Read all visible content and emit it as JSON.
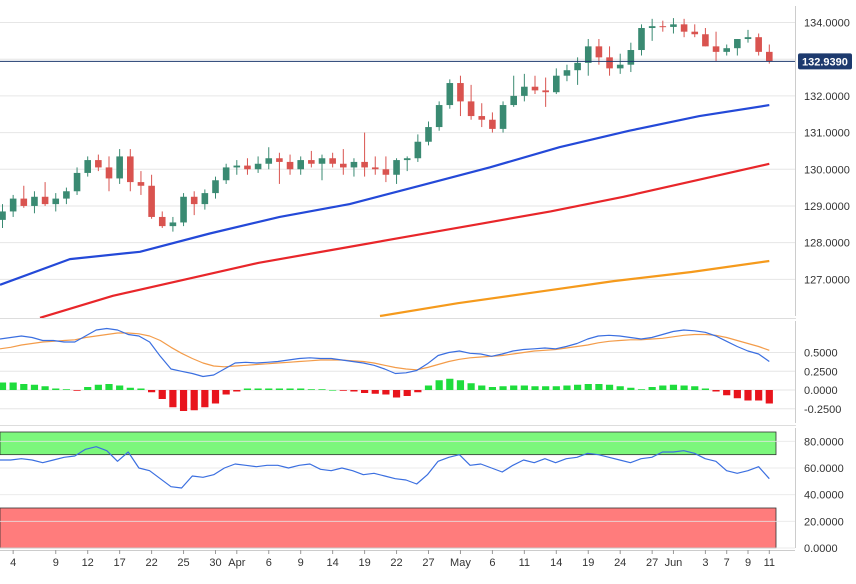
{
  "colors": {
    "up": "#3a8a72",
    "down": "#d9534f",
    "ma_fast": "#2449d8",
    "ma_mid": "#e8262a",
    "ma_slow": "#f59a1c",
    "osc_fast": "#3b6fe0",
    "osc_slow": "#f39c4a",
    "hist_pos": "#1fdc3c",
    "hist_neg": "#e8141c",
    "overbought": "#7cf77c",
    "oversold": "#ff7c7c",
    "last_price_bg": "#1d3a6e"
  },
  "chart_data": [
    {
      "type": "candlestick",
      "name": "price",
      "ylim": [
        126.0,
        134.45
      ],
      "y_ticks": [
        "134.0000",
        "133.0000",
        "132.0000",
        "131.0000",
        "130.0000",
        "129.0000",
        "128.0000",
        "127.0000"
      ],
      "y_tick_values": [
        134,
        133,
        132,
        131,
        130,
        129,
        128,
        127
      ],
      "last_price": "132.9390",
      "last_price_value": 132.939,
      "x_labels": [
        "4",
        "9",
        "12",
        "17",
        "22",
        "25",
        "30",
        "Apr",
        "6",
        "9",
        "14",
        "19",
        "22",
        "27",
        "May",
        "6",
        "11",
        "14",
        "19",
        "24",
        "27",
        "Jun",
        "3",
        "7",
        "9",
        "11"
      ],
      "x_label_bars": [
        1,
        5,
        8,
        11,
        14,
        17,
        20,
        22,
        25,
        28,
        31,
        34,
        37,
        40,
        43,
        46,
        49,
        52,
        55,
        58,
        61,
        63,
        66,
        68,
        70,
        72
      ],
      "ohlc": [
        [
          128.62,
          129.05,
          128.4,
          128.85
        ],
        [
          128.85,
          129.3,
          128.7,
          129.2
        ],
        [
          129.2,
          129.55,
          128.95,
          129.0
        ],
        [
          129.0,
          129.4,
          128.8,
          129.25
        ],
        [
          129.25,
          129.65,
          129.0,
          129.05
        ],
        [
          129.05,
          129.35,
          128.85,
          129.2
        ],
        [
          129.2,
          129.5,
          129.05,
          129.4
        ],
        [
          129.4,
          130.05,
          129.3,
          129.9
        ],
        [
          129.9,
          130.35,
          129.8,
          130.25
        ],
        [
          130.25,
          130.4,
          129.95,
          130.05
        ],
        [
          130.05,
          130.35,
          129.4,
          129.75
        ],
        [
          129.75,
          130.55,
          129.6,
          130.35
        ],
        [
          130.35,
          130.55,
          129.4,
          129.65
        ],
        [
          129.65,
          129.95,
          129.3,
          129.55
        ],
        [
          129.55,
          129.85,
          128.65,
          128.7
        ],
        [
          128.7,
          128.85,
          128.4,
          128.45
        ],
        [
          128.45,
          128.7,
          128.3,
          128.55
        ],
        [
          128.55,
          129.35,
          128.45,
          129.25
        ],
        [
          129.25,
          129.4,
          128.75,
          129.05
        ],
        [
          129.05,
          129.45,
          128.9,
          129.35
        ],
        [
          129.35,
          129.8,
          129.2,
          129.7
        ],
        [
          129.7,
          130.15,
          129.6,
          130.05
        ],
        [
          130.05,
          130.25,
          129.85,
          130.1
        ],
        [
          130.1,
          130.3,
          129.85,
          130.0
        ],
        [
          130.0,
          130.35,
          129.9,
          130.15
        ],
        [
          130.15,
          130.6,
          130.0,
          130.3
        ],
        [
          130.3,
          130.45,
          129.6,
          130.2
        ],
        [
          130.2,
          130.4,
          129.85,
          130.0
        ],
        [
          130.0,
          130.35,
          129.85,
          130.25
        ],
        [
          130.25,
          130.5,
          130.05,
          130.15
        ],
        [
          130.15,
          130.4,
          129.7,
          130.3
        ],
        [
          130.3,
          130.45,
          130.05,
          130.15
        ],
        [
          130.15,
          130.55,
          129.85,
          130.05
        ],
        [
          130.05,
          130.3,
          129.8,
          130.2
        ],
        [
          130.2,
          131.0,
          129.8,
          130.05
        ],
        [
          130.05,
          130.35,
          129.85,
          130.0
        ],
        [
          130.0,
          130.35,
          129.65,
          129.85
        ],
        [
          129.85,
          130.3,
          129.6,
          130.25
        ],
        [
          130.25,
          130.35,
          129.95,
          130.3
        ],
        [
          130.3,
          130.95,
          130.2,
          130.75
        ],
        [
          130.75,
          131.3,
          130.65,
          131.15
        ],
        [
          131.15,
          131.85,
          131.05,
          131.75
        ],
        [
          131.75,
          132.45,
          131.65,
          132.35
        ],
        [
          132.35,
          132.55,
          131.45,
          131.85
        ],
        [
          131.85,
          132.3,
          131.35,
          131.45
        ],
        [
          131.45,
          131.8,
          131.15,
          131.35
        ],
        [
          131.35,
          131.55,
          131.0,
          131.1
        ],
        [
          131.1,
          131.85,
          131.0,
          131.75
        ],
        [
          131.75,
          132.55,
          131.7,
          132.0
        ],
        [
          132.0,
          132.6,
          131.85,
          132.25
        ],
        [
          132.25,
          132.55,
          132.05,
          132.15
        ],
        [
          132.15,
          132.5,
          131.7,
          132.1
        ],
        [
          132.1,
          132.75,
          132.05,
          132.55
        ],
        [
          132.55,
          132.85,
          132.4,
          132.7
        ],
        [
          132.7,
          133.05,
          132.3,
          132.9
        ],
        [
          132.9,
          133.55,
          132.55,
          133.35
        ],
        [
          133.35,
          133.55,
          132.85,
          133.05
        ],
        [
          133.05,
          133.35,
          132.55,
          132.75
        ],
        [
          132.75,
          133.15,
          132.6,
          132.85
        ],
        [
          132.85,
          133.45,
          132.65,
          133.25
        ],
        [
          133.25,
          133.95,
          133.1,
          133.85
        ],
        [
          133.85,
          134.1,
          133.5,
          133.9
        ],
        [
          133.9,
          134.05,
          133.75,
          133.88
        ],
        [
          133.88,
          134.12,
          133.7,
          133.95
        ],
        [
          133.95,
          134.1,
          133.6,
          133.75
        ],
        [
          133.75,
          133.95,
          133.6,
          133.68
        ],
        [
          133.68,
          133.85,
          133.35,
          133.35
        ],
        [
          133.35,
          133.75,
          132.95,
          133.2
        ],
        [
          133.2,
          133.4,
          133.1,
          133.3
        ],
        [
          133.3,
          133.55,
          133.1,
          133.55
        ],
        [
          133.55,
          133.8,
          133.45,
          133.6
        ],
        [
          133.6,
          133.7,
          133.1,
          133.2
        ],
        [
          133.2,
          133.4,
          132.88,
          132.94
        ]
      ],
      "ma_fast": [
        126.85,
        127.55,
        127.75,
        128.25,
        128.7,
        129.05,
        129.55,
        130.05,
        130.6,
        131.05,
        131.45,
        131.75
      ],
      "ma_mid": [
        125.95,
        126.55,
        127.0,
        127.45,
        127.8,
        128.15,
        128.5,
        128.85,
        129.25,
        129.7,
        130.15
      ],
      "ma_slow": [
        126.0,
        126.35,
        126.65,
        126.95,
        127.2,
        127.5
      ]
    },
    {
      "type": "line",
      "name": "oscillator",
      "ylim": [
        -0.44,
        0.92
      ],
      "y_ticks": [
        "0.5000",
        "0.2500",
        "0.0000",
        "-0.2500"
      ],
      "y_tick_values": [
        0.5,
        0.25,
        0.0,
        -0.25
      ],
      "fast_line": [
        0.68,
        0.7,
        0.72,
        0.7,
        0.66,
        0.66,
        0.64,
        0.64,
        0.72,
        0.8,
        0.82,
        0.8,
        0.74,
        0.72,
        0.64,
        0.45,
        0.28,
        0.25,
        0.22,
        0.18,
        0.2,
        0.28,
        0.36,
        0.37,
        0.36,
        0.37,
        0.38,
        0.4,
        0.42,
        0.43,
        0.42,
        0.42,
        0.4,
        0.38,
        0.36,
        0.33,
        0.28,
        0.22,
        0.23,
        0.26,
        0.35,
        0.46,
        0.5,
        0.52,
        0.49,
        0.48,
        0.45,
        0.48,
        0.52,
        0.54,
        0.55,
        0.56,
        0.55,
        0.58,
        0.62,
        0.68,
        0.72,
        0.73,
        0.72,
        0.7,
        0.68,
        0.7,
        0.74,
        0.78,
        0.8,
        0.79,
        0.77,
        0.72,
        0.65,
        0.58,
        0.52,
        0.48,
        0.38
      ],
      "slow_line": [
        0.55,
        0.57,
        0.6,
        0.62,
        0.64,
        0.65,
        0.66,
        0.67,
        0.7,
        0.72,
        0.74,
        0.76,
        0.76,
        0.75,
        0.72,
        0.66,
        0.57,
        0.49,
        0.42,
        0.36,
        0.32,
        0.31,
        0.32,
        0.33,
        0.34,
        0.35,
        0.36,
        0.37,
        0.38,
        0.39,
        0.4,
        0.4,
        0.4,
        0.39,
        0.38,
        0.36,
        0.33,
        0.3,
        0.28,
        0.27,
        0.3,
        0.34,
        0.38,
        0.41,
        0.43,
        0.44,
        0.45,
        0.46,
        0.48,
        0.5,
        0.52,
        0.53,
        0.54,
        0.56,
        0.58,
        0.6,
        0.63,
        0.65,
        0.66,
        0.67,
        0.67,
        0.68,
        0.69,
        0.71,
        0.73,
        0.74,
        0.74,
        0.73,
        0.7,
        0.66,
        0.62,
        0.58,
        0.53
      ],
      "histogram": [
        0.1,
        0.1,
        0.08,
        0.07,
        0.05,
        0.02,
        0.01,
        -0.01,
        0.04,
        0.07,
        0.08,
        0.06,
        0.03,
        0.02,
        -0.03,
        -0.12,
        -0.23,
        -0.28,
        -0.27,
        -0.23,
        -0.18,
        -0.06,
        -0.02,
        0.02,
        0.02,
        0.02,
        0.02,
        0.02,
        0.02,
        0.01,
        0.01,
        0.0,
        -0.01,
        -0.02,
        -0.04,
        -0.05,
        -0.06,
        -0.1,
        -0.08,
        -0.03,
        0.06,
        0.13,
        0.15,
        0.13,
        0.09,
        0.06,
        0.04,
        0.05,
        0.06,
        0.06,
        0.05,
        0.05,
        0.05,
        0.06,
        0.07,
        0.08,
        0.08,
        0.07,
        0.05,
        0.03,
        0.01,
        0.04,
        0.06,
        0.07,
        0.06,
        0.05,
        0.02,
        -0.02,
        -0.07,
        -0.11,
        -0.14,
        -0.14,
        -0.18
      ]
    },
    {
      "type": "line",
      "name": "rsi",
      "ylim": [
        0,
        90
      ],
      "y_ticks": [
        "80.0000",
        "60.0000",
        "40.0000",
        "20.0000",
        "0.0000"
      ],
      "y_tick_values": [
        80,
        60,
        40,
        20,
        0
      ],
      "overbought": 70,
      "oversold": 30,
      "line": [
        66,
        66,
        67,
        66,
        64,
        66,
        68,
        69,
        74,
        76,
        73,
        65,
        72,
        60,
        58,
        52,
        46,
        45,
        54,
        53,
        55,
        60,
        63,
        62,
        61,
        62,
        62,
        60,
        62,
        63,
        59,
        58,
        60,
        58,
        55,
        56,
        54,
        52,
        51,
        48,
        55,
        65,
        68,
        70,
        62,
        63,
        60,
        57,
        62,
        66,
        64,
        67,
        64,
        67,
        68,
        71,
        70,
        68,
        66,
        64,
        67,
        68,
        72,
        72,
        73,
        71,
        67,
        65,
        58,
        56,
        58,
        61,
        52
      ]
    }
  ]
}
